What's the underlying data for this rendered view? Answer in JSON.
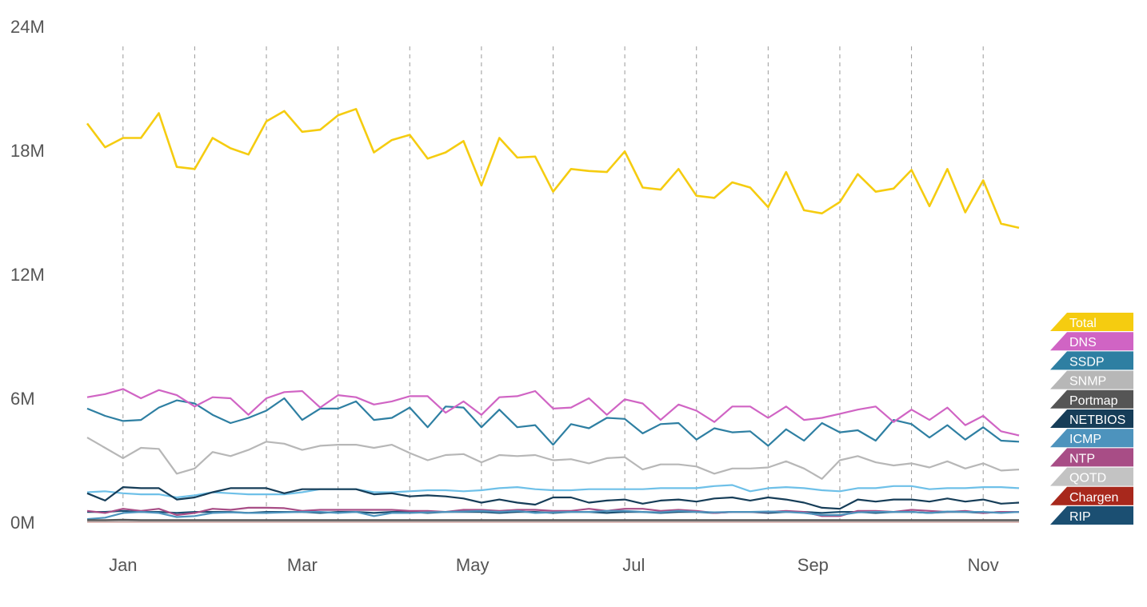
{
  "chart_data": {
    "type": "line",
    "title": "",
    "xlabel": "",
    "ylabel": "",
    "ylim": [
      0,
      24000000
    ],
    "y_ticks": [
      {
        "value": 0,
        "label": "0M"
      },
      {
        "value": 6000000,
        "label": "6M"
      },
      {
        "value": 12000000,
        "label": "12M"
      },
      {
        "value": 18000000,
        "label": "18M"
      },
      {
        "value": 24000000,
        "label": "24M"
      }
    ],
    "x_range": [
      0,
      52
    ],
    "x_ticks": [
      {
        "value": 2,
        "label": "Jan"
      },
      {
        "value": 12,
        "label": "Mar"
      },
      {
        "value": 21.5,
        "label": "May"
      },
      {
        "value": 30.5,
        "label": "Jul"
      },
      {
        "value": 40.5,
        "label": "Sep"
      },
      {
        "value": 50,
        "label": "Nov"
      }
    ],
    "gridlines_x": [
      2,
      6,
      10,
      14,
      18,
      22,
      26,
      30,
      34,
      38,
      42,
      46,
      50
    ],
    "grid": "vertical dashed",
    "legend_position": "right",
    "series": [
      {
        "name": "Total",
        "color": "#f5cc10",
        "values": [
          19.3,
          18.15,
          18.6,
          18.6,
          19.8,
          17.2,
          17.1,
          18.6,
          18.1,
          17.8,
          19.4,
          19.9,
          18.9,
          19.0,
          19.7,
          20.0,
          17.9,
          18.5,
          18.75,
          17.6,
          17.9,
          18.45,
          16.3,
          18.6,
          17.65,
          17.7,
          16.0,
          17.1,
          17.0,
          16.95,
          17.95,
          16.2,
          16.1,
          17.1,
          15.8,
          15.7,
          16.45,
          16.2,
          15.25,
          16.95,
          15.1,
          14.95,
          15.5,
          16.85,
          16.0,
          16.15,
          17.05,
          15.3,
          17.1,
          15.0,
          16.55,
          14.45,
          14.25
        ]
      },
      {
        "name": "DNS",
        "color": "#d064c4",
        "values": [
          6.05,
          6.2,
          6.45,
          6.0,
          6.4,
          6.15,
          5.6,
          6.05,
          6.0,
          5.2,
          6.0,
          6.3,
          6.35,
          5.55,
          6.15,
          6.05,
          5.7,
          5.85,
          6.1,
          6.1,
          5.3,
          5.85,
          5.2,
          6.05,
          6.1,
          6.35,
          5.5,
          5.55,
          6.0,
          5.2,
          5.95,
          5.75,
          4.95,
          5.7,
          5.4,
          4.85,
          5.6,
          5.6,
          5.05,
          5.6,
          4.95,
          5.05,
          5.25,
          5.45,
          5.6,
          4.85,
          5.45,
          4.95,
          5.55,
          4.7,
          5.15,
          4.4,
          4.2
        ]
      },
      {
        "name": "SSDP",
        "color": "#2e7fa2",
        "values": [
          5.5,
          5.15,
          4.9,
          4.95,
          5.55,
          5.9,
          5.75,
          5.2,
          4.8,
          5.05,
          5.4,
          6.0,
          4.95,
          5.5,
          5.5,
          5.85,
          4.95,
          5.05,
          5.55,
          4.6,
          5.6,
          5.55,
          4.6,
          5.45,
          4.6,
          4.7,
          3.75,
          4.75,
          4.55,
          5.05,
          5.0,
          4.3,
          4.75,
          4.8,
          4.0,
          4.55,
          4.35,
          4.4,
          3.7,
          4.5,
          3.95,
          4.8,
          4.35,
          4.45,
          3.95,
          4.95,
          4.75,
          4.1,
          4.7,
          4.0,
          4.6,
          3.95,
          3.9
        ]
      },
      {
        "name": "SNMP",
        "color": "#b7b7b7",
        "values": [
          4.1,
          3.6,
          3.1,
          3.6,
          3.55,
          2.35,
          2.6,
          3.4,
          3.2,
          3.5,
          3.9,
          3.8,
          3.5,
          3.7,
          3.75,
          3.75,
          3.6,
          3.75,
          3.35,
          3.0,
          3.25,
          3.3,
          2.9,
          3.25,
          3.2,
          3.25,
          3.0,
          3.05,
          2.85,
          3.1,
          3.15,
          2.55,
          2.8,
          2.8,
          2.7,
          2.35,
          2.6,
          2.6,
          2.65,
          2.95,
          2.6,
          2.1,
          3.0,
          3.2,
          2.9,
          2.75,
          2.85,
          2.65,
          2.95,
          2.6,
          2.85,
          2.5,
          2.55
        ]
      },
      {
        "name": "Portmap",
        "color": "#555555",
        "values": [
          0.1,
          0.1,
          0.12,
          0.1,
          0.1,
          0.1,
          0.1,
          0.1,
          0.1,
          0.1,
          0.1,
          0.1,
          0.1,
          0.1,
          0.1,
          0.1,
          0.1,
          0.1,
          0.1,
          0.1,
          0.1,
          0.1,
          0.1,
          0.1,
          0.1,
          0.1,
          0.1,
          0.1,
          0.1,
          0.1,
          0.1,
          0.1,
          0.1,
          0.1,
          0.1,
          0.1,
          0.1,
          0.1,
          0.1,
          0.1,
          0.1,
          0.1,
          0.1,
          0.1,
          0.1,
          0.1,
          0.1,
          0.1,
          0.1,
          0.1,
          0.1,
          0.1,
          0.1
        ]
      },
      {
        "name": "NETBIOS",
        "color": "#163d58",
        "values": [
          1.4,
          1.05,
          1.7,
          1.65,
          1.65,
          1.1,
          1.2,
          1.45,
          1.65,
          1.65,
          1.65,
          1.4,
          1.6,
          1.6,
          1.6,
          1.6,
          1.35,
          1.4,
          1.25,
          1.3,
          1.25,
          1.15,
          0.95,
          1.1,
          0.95,
          0.85,
          1.2,
          1.2,
          0.95,
          1.05,
          1.1,
          0.9,
          1.05,
          1.1,
          1.0,
          1.15,
          1.2,
          1.05,
          1.2,
          1.1,
          0.95,
          0.7,
          0.65,
          1.1,
          1.0,
          1.1,
          1.1,
          1.0,
          1.15,
          1.0,
          1.1,
          0.9,
          0.95
        ]
      },
      {
        "name": "ICMP",
        "color": "#4d93bd",
        "values": [
          0.15,
          0.22,
          0.45,
          0.5,
          0.45,
          0.25,
          0.3,
          0.45,
          0.48,
          0.45,
          0.45,
          0.48,
          0.5,
          0.5,
          0.45,
          0.5,
          0.3,
          0.45,
          0.45,
          0.48,
          0.5,
          0.52,
          0.55,
          0.5,
          0.55,
          0.45,
          0.48,
          0.5,
          0.5,
          0.55,
          0.55,
          0.5,
          0.48,
          0.55,
          0.5,
          0.48,
          0.5,
          0.5,
          0.52,
          0.5,
          0.45,
          0.35,
          0.35,
          0.48,
          0.5,
          0.5,
          0.5,
          0.45,
          0.52,
          0.5,
          0.5,
          0.45,
          0.5
        ]
      },
      {
        "name": "NTP",
        "color": "#a84d86",
        "values": [
          0.55,
          0.45,
          0.65,
          0.55,
          0.65,
          0.35,
          0.45,
          0.65,
          0.6,
          0.7,
          0.7,
          0.68,
          0.55,
          0.6,
          0.6,
          0.6,
          0.6,
          0.6,
          0.55,
          0.55,
          0.5,
          0.6,
          0.6,
          0.55,
          0.6,
          0.6,
          0.55,
          0.55,
          0.65,
          0.55,
          0.65,
          0.65,
          0.55,
          0.6,
          0.55,
          0.45,
          0.5,
          0.5,
          0.5,
          0.55,
          0.5,
          0.3,
          0.3,
          0.55,
          0.55,
          0.5,
          0.6,
          0.55,
          0.5,
          0.55,
          0.45,
          0.5,
          0.5
        ]
      },
      {
        "name": "QOTD",
        "color": "#c3c3c3",
        "values": [
          0.05,
          0.05,
          0.05,
          0.05,
          0.05,
          0.05,
          0.05,
          0.05,
          0.05,
          0.05,
          0.05,
          0.05,
          0.05,
          0.05,
          0.05,
          0.05,
          0.05,
          0.05,
          0.05,
          0.05,
          0.05,
          0.05,
          0.05,
          0.05,
          0.05,
          0.05,
          0.05,
          0.05,
          0.05,
          0.05,
          0.05,
          0.05,
          0.05,
          0.05,
          0.05,
          0.05,
          0.05,
          0.05,
          0.05,
          0.05,
          0.05,
          0.05,
          0.05,
          0.05,
          0.05,
          0.05,
          0.05,
          0.05,
          0.05,
          0.05,
          0.05,
          0.05,
          0.05
        ]
      },
      {
        "name": "Chargen",
        "color": "#a8281c",
        "values": [
          0.03,
          0.03,
          0.03,
          0.03,
          0.03,
          0.03,
          0.03,
          0.03,
          0.03,
          0.03,
          0.03,
          0.03,
          0.03,
          0.03,
          0.03,
          0.03,
          0.03,
          0.03,
          0.03,
          0.03,
          0.03,
          0.03,
          0.03,
          0.03,
          0.03,
          0.03,
          0.03,
          0.03,
          0.03,
          0.03,
          0.03,
          0.03,
          0.03,
          0.03,
          0.03,
          0.03,
          0.03,
          0.03,
          0.03,
          0.03,
          0.03,
          0.03,
          0.03,
          0.03,
          0.03,
          0.03,
          0.03,
          0.03,
          0.03,
          0.03,
          0.03,
          0.03,
          0.03
        ]
      },
      {
        "name": "RIP",
        "color": "#1b4f72",
        "values": [
          0.5,
          0.5,
          0.55,
          0.5,
          0.5,
          0.45,
          0.5,
          0.5,
          0.5,
          0.45,
          0.5,
          0.5,
          0.5,
          0.45,
          0.5,
          0.5,
          0.45,
          0.5,
          0.5,
          0.45,
          0.5,
          0.5,
          0.5,
          0.45,
          0.5,
          0.5,
          0.45,
          0.5,
          0.5,
          0.45,
          0.5,
          0.5,
          0.45,
          0.5,
          0.5,
          0.45,
          0.5,
          0.5,
          0.45,
          0.5,
          0.5,
          0.45,
          0.5,
          0.5,
          0.45,
          0.5,
          0.5,
          0.45,
          0.5,
          0.5,
          0.45,
          0.5,
          0.5
        ]
      },
      {
        "name": "",
        "color": "#6ec0e8",
        "values": [
          1.45,
          1.5,
          1.4,
          1.35,
          1.35,
          1.2,
          1.3,
          1.45,
          1.4,
          1.35,
          1.35,
          1.35,
          1.45,
          1.6,
          1.6,
          1.6,
          1.45,
          1.45,
          1.5,
          1.55,
          1.55,
          1.5,
          1.55,
          1.65,
          1.7,
          1.6,
          1.55,
          1.55,
          1.6,
          1.6,
          1.6,
          1.6,
          1.65,
          1.65,
          1.65,
          1.75,
          1.8,
          1.5,
          1.65,
          1.7,
          1.65,
          1.55,
          1.5,
          1.65,
          1.65,
          1.75,
          1.75,
          1.6,
          1.65,
          1.65,
          1.7,
          1.7,
          1.65
        ]
      }
    ]
  }
}
